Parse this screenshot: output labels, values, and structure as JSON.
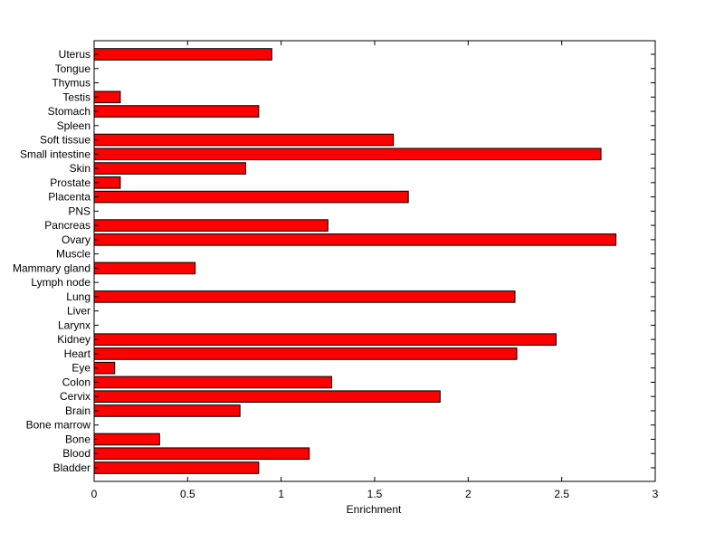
{
  "chart_data": {
    "type": "bar",
    "orientation": "horizontal",
    "title": "",
    "xlabel": "Enrichment",
    "ylabel": "",
    "xlim": [
      0,
      3
    ],
    "xticks": [
      "0",
      "0.5",
      "1",
      "1.5",
      "2",
      "2.5",
      "3"
    ],
    "grid": false,
    "bar_color": "#ff0000",
    "categories": [
      "Bladder",
      "Blood",
      "Bone",
      "Bone marrow",
      "Brain",
      "Cervix",
      "Colon",
      "Eye",
      "Heart",
      "Kidney",
      "Larynx",
      "Liver",
      "Lung",
      "Lymph node",
      "Mammary gland",
      "Muscle",
      "Ovary",
      "Pancreas",
      "PNS",
      "Placenta",
      "Prostate",
      "Skin",
      "Small intestine",
      "Soft tissue",
      "Spleen",
      "Stomach",
      "Testis",
      "Thymus",
      "Tongue",
      "Uterus"
    ],
    "values": [
      0.88,
      1.15,
      0.35,
      0,
      0.78,
      1.85,
      1.27,
      0.11,
      2.26,
      2.47,
      0,
      0,
      2.25,
      0,
      0.54,
      0,
      2.79,
      1.25,
      0,
      1.68,
      0.14,
      0.81,
      2.71,
      1.6,
      0,
      0.88,
      0.14,
      0,
      0,
      0.95
    ]
  }
}
